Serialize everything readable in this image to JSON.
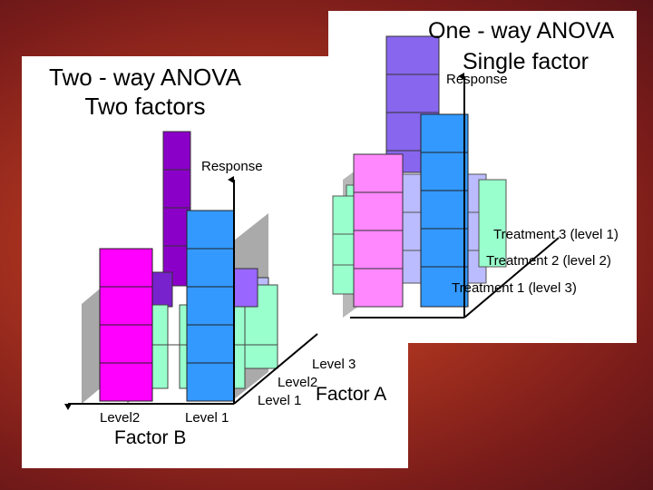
{
  "colors": {
    "purple": "#8b00c8",
    "blue": "#3399ff",
    "magenta": "#ff00ff",
    "mint": "#99ffcc",
    "lavender": "#bbbbff",
    "grey": "#b0b0b0",
    "pink": "#ff88ff",
    "violet": "#8866ee",
    "background": "#a8321f"
  },
  "two_way": {
    "title_line1": "Two - way ANOVA",
    "title_line2": "Two factors",
    "response_label": "Response",
    "factor_b_label": "Factor B",
    "factor_b_levels": [
      "Level2",
      "Level 1"
    ],
    "factor_a_label": "Factor A",
    "factor_a_levels": [
      "Level 3",
      "Level2",
      "Level 1"
    ]
  },
  "one_way": {
    "title_line1": "One - way ANOVA",
    "title_line2": "Single factor",
    "response_label": "Response",
    "treatments": [
      "Treatment 3 (level 1)",
      "Treatment 2 (level 2)",
      "Treatment 1 (level 3)"
    ]
  }
}
